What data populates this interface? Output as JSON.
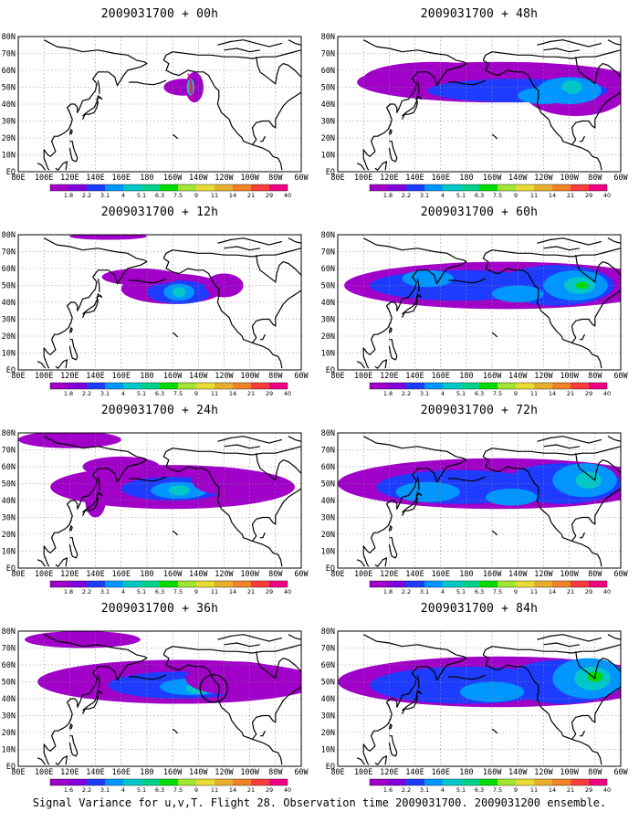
{
  "caption": "Signal Variance for u,v,T. Flight 28. Observation time 2009031700. 2009031200 ensemble.",
  "map": {
    "lon_ticks": [
      "80E",
      "100E",
      "120E",
      "140E",
      "160E",
      "180",
      "160W",
      "140W",
      "120W",
      "100W",
      "80W",
      "60W"
    ],
    "lat_ticks": [
      "80N",
      "70N",
      "60N",
      "50N",
      "40N",
      "30N",
      "20N",
      "10N",
      "EQ"
    ],
    "lon_range_deg_east": [
      80,
      300
    ],
    "lat_range_deg": [
      0,
      80
    ]
  },
  "colorbar": {
    "labels": [
      "1.8",
      "2.2",
      "3.1",
      "4",
      "5.1",
      "6.3",
      "7.5",
      "9",
      "11",
      "14",
      "21",
      "29",
      "40"
    ],
    "bottom_left_label": "1.6",
    "colors": [
      "#a000c8",
      "#8200dc",
      "#1e3cff",
      "#0096ff",
      "#00c8c8",
      "#00d28c",
      "#00dc00",
      "#a0e632",
      "#e6dc32",
      "#e6af2d",
      "#f08228",
      "#fa3c3c",
      "#f00082"
    ]
  },
  "panels": [
    {
      "title": "2009031700 + 00h",
      "level": 1,
      "bottom_first_label": "1.8",
      "circle": false
    },
    {
      "title": "2009031700 + 48h",
      "level": 3,
      "bottom_first_label": "1.8",
      "circle": false
    },
    {
      "title": "2009031700 + 12h",
      "level": 2,
      "bottom_first_label": "1.8",
      "circle": false
    },
    {
      "title": "2009031700 + 60h",
      "level": 4,
      "bottom_first_label": "1.8",
      "circle": false
    },
    {
      "title": "2009031700 + 24h",
      "level": 2,
      "bottom_first_label": "1.8",
      "circle": false
    },
    {
      "title": "2009031700 + 72h",
      "level": 4,
      "bottom_first_label": "1.8",
      "circle": false
    },
    {
      "title": "2009031700 + 36h",
      "level": 3,
      "bottom_first_label": "1.6",
      "circle": true
    },
    {
      "title": "2009031700 + 84h",
      "level": 4,
      "bottom_first_label": "1.6",
      "circle": false
    }
  ]
}
